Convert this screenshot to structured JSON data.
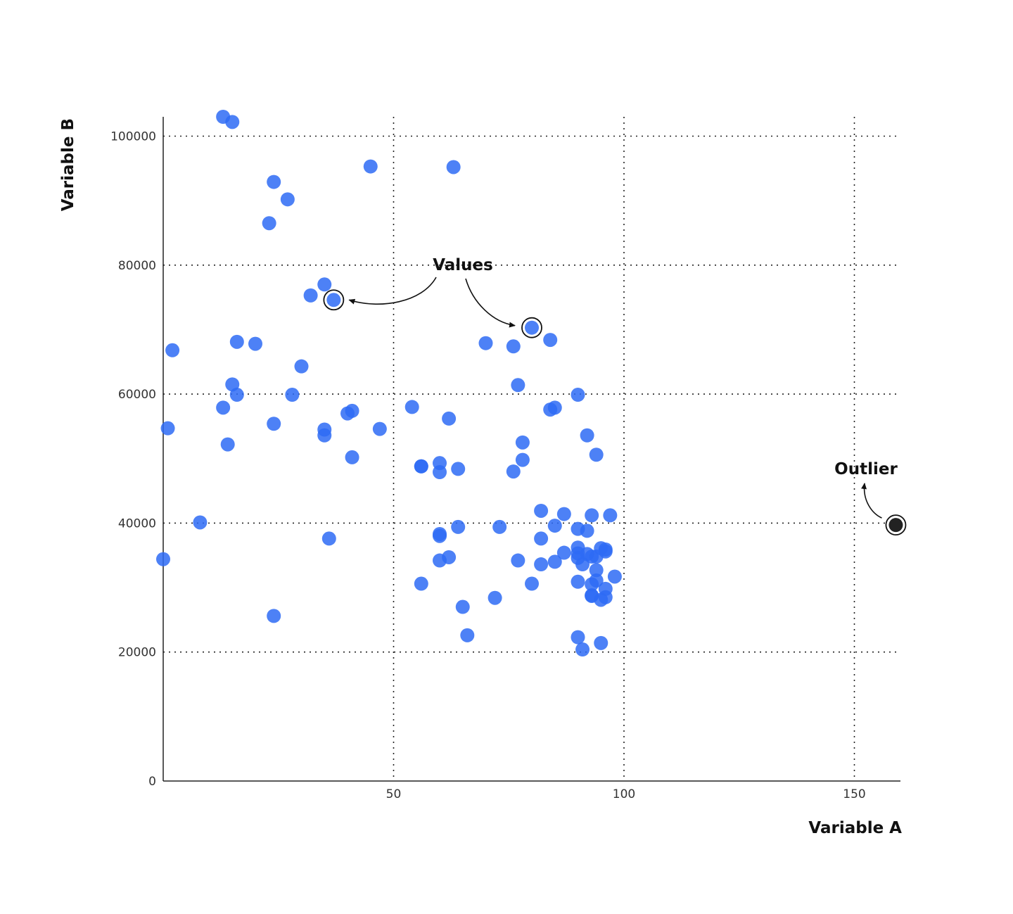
{
  "chart_data": {
    "type": "scatter",
    "xlabel": "Variable A",
    "ylabel": "Variable B",
    "xlim": [
      0,
      160
    ],
    "ylim": [
      0,
      103000
    ],
    "xticks": [
      50,
      100,
      150
    ],
    "yticks": [
      0,
      20000,
      40000,
      60000,
      80000,
      100000
    ],
    "xtick_labels": [
      "50",
      "100",
      "150"
    ],
    "ytick_labels": [
      "0",
      "20000",
      "40000",
      "60000",
      "80000",
      "100000"
    ],
    "grid": "dotted",
    "point_color": "#2e6bf5",
    "outlier_color": "#222222",
    "points": [
      {
        "x": 13,
        "y": 103000
      },
      {
        "x": 15,
        "y": 102200
      },
      {
        "x": 45,
        "y": 95300
      },
      {
        "x": 63,
        "y": 95200
      },
      {
        "x": 24,
        "y": 92900
      },
      {
        "x": 27,
        "y": 90200
      },
      {
        "x": 23,
        "y": 86500
      },
      {
        "x": 35,
        "y": 77000
      },
      {
        "x": 32,
        "y": 75300
      },
      {
        "x": 37,
        "y": 74600
      },
      {
        "x": 80,
        "y": 70300
      },
      {
        "x": 2,
        "y": 66800
      },
      {
        "x": 16,
        "y": 68100
      },
      {
        "x": 20,
        "y": 67800
      },
      {
        "x": 70,
        "y": 67900
      },
      {
        "x": 76,
        "y": 67400
      },
      {
        "x": 84,
        "y": 68400
      },
      {
        "x": 30,
        "y": 64300
      },
      {
        "x": 15,
        "y": 61500
      },
      {
        "x": 16,
        "y": 59900
      },
      {
        "x": 28,
        "y": 59900
      },
      {
        "x": 77,
        "y": 61400
      },
      {
        "x": 90,
        "y": 59900
      },
      {
        "x": 13,
        "y": 57900
      },
      {
        "x": 40,
        "y": 57000
      },
      {
        "x": 41,
        "y": 57400
      },
      {
        "x": 54,
        "y": 58000
      },
      {
        "x": 84,
        "y": 57600
      },
      {
        "x": 85,
        "y": 57900
      },
      {
        "x": 1,
        "y": 54700
      },
      {
        "x": 24,
        "y": 55400
      },
      {
        "x": 35,
        "y": 54500
      },
      {
        "x": 35,
        "y": 53600
      },
      {
        "x": 47,
        "y": 54600
      },
      {
        "x": 62,
        "y": 56200
      },
      {
        "x": 92,
        "y": 53600
      },
      {
        "x": 14,
        "y": 52200
      },
      {
        "x": 78,
        "y": 52500
      },
      {
        "x": 41,
        "y": 50200
      },
      {
        "x": 94,
        "y": 50600
      },
      {
        "x": 78,
        "y": 49800
      },
      {
        "x": 56,
        "y": 48800
      },
      {
        "x": 56,
        "y": 48800
      },
      {
        "x": 60,
        "y": 49300
      },
      {
        "x": 60,
        "y": 47900
      },
      {
        "x": 64,
        "y": 48400
      },
      {
        "x": 76,
        "y": 48000
      },
      {
        "x": 8,
        "y": 40100
      },
      {
        "x": 82,
        "y": 41900
      },
      {
        "x": 87,
        "y": 41400
      },
      {
        "x": 93,
        "y": 41200
      },
      {
        "x": 97,
        "y": 41200
      },
      {
        "x": 64,
        "y": 39400
      },
      {
        "x": 73,
        "y": 39400
      },
      {
        "x": 85,
        "y": 39600
      },
      {
        "x": 90,
        "y": 39100
      },
      {
        "x": 92,
        "y": 38800
      },
      {
        "x": 60,
        "y": 38300
      },
      {
        "x": 60,
        "y": 38000
      },
      {
        "x": 36,
        "y": 37600
      },
      {
        "x": 82,
        "y": 37600
      },
      {
        "x": 90,
        "y": 36200
      },
      {
        "x": 95,
        "y": 36100
      },
      {
        "x": 96,
        "y": 35900
      },
      {
        "x": 96,
        "y": 35600
      },
      {
        "x": 87,
        "y": 35400
      },
      {
        "x": 90,
        "y": 35300
      },
      {
        "x": 92,
        "y": 35200
      },
      {
        "x": 93,
        "y": 34800
      },
      {
        "x": 90,
        "y": 34600
      },
      {
        "x": 94,
        "y": 34800
      },
      {
        "x": 0,
        "y": 34400
      },
      {
        "x": 62,
        "y": 34700
      },
      {
        "x": 60,
        "y": 34200
      },
      {
        "x": 77,
        "y": 34200
      },
      {
        "x": 85,
        "y": 34000
      },
      {
        "x": 82,
        "y": 33600
      },
      {
        "x": 91,
        "y": 33600
      },
      {
        "x": 94,
        "y": 32700
      },
      {
        "x": 98,
        "y": 31700
      },
      {
        "x": 94,
        "y": 31100
      },
      {
        "x": 90,
        "y": 30900
      },
      {
        "x": 93,
        "y": 30500
      },
      {
        "x": 56,
        "y": 30600
      },
      {
        "x": 80,
        "y": 30600
      },
      {
        "x": 96,
        "y": 29800
      },
      {
        "x": 93,
        "y": 28800
      },
      {
        "x": 93,
        "y": 28700
      },
      {
        "x": 96,
        "y": 28500
      },
      {
        "x": 95,
        "y": 28100
      },
      {
        "x": 72,
        "y": 28400
      },
      {
        "x": 65,
        "y": 27000
      },
      {
        "x": 24,
        "y": 25600
      },
      {
        "x": 66,
        "y": 22600
      },
      {
        "x": 90,
        "y": 22300
      },
      {
        "x": 95,
        "y": 21400
      },
      {
        "x": 91,
        "y": 20400
      }
    ],
    "highlighted": [
      {
        "x": 37,
        "y": 74600
      },
      {
        "x": 80,
        "y": 70300
      }
    ],
    "outlier": {
      "x": 159,
      "y": 39700
    },
    "annotations": [
      {
        "text": "Values"
      },
      {
        "text": "Outlier"
      }
    ]
  }
}
